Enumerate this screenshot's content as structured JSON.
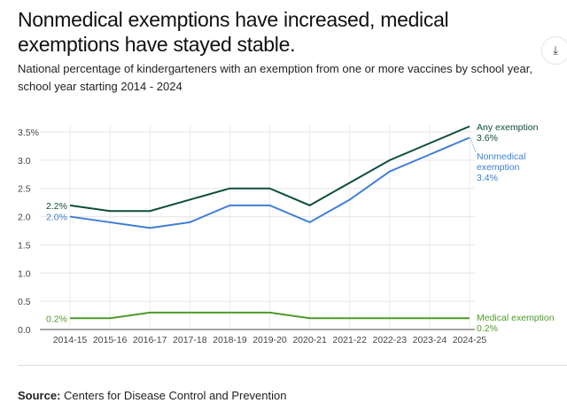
{
  "header": {
    "title": "Nonmedical exemptions have increased, medical exemptions have stayed stable.",
    "subtitle": "National percentage of kindergarteners with an exemption from one or more vaccines by school year, school year starting 2014 - 2024",
    "download_icon": "download-icon"
  },
  "footer": {
    "source_label": "Source:",
    "source_text": " Centers for Disease Control and Prevention"
  },
  "chart_data": {
    "type": "line",
    "x": [
      "2014-15",
      "2015-16",
      "2016-17",
      "2017-18",
      "2018-19",
      "2019-20",
      "2020-21",
      "2021-22",
      "2022-23",
      "2023-24",
      "2024-25"
    ],
    "yticks": [
      "0.0",
      "0.5",
      "1.0",
      "1.5",
      "2.0",
      "2.5",
      "3.0",
      "3.5%"
    ],
    "ylim": [
      0,
      3.5
    ],
    "grid": true,
    "series": [
      {
        "name": "Any exemption",
        "color": "#0d4d3a",
        "values": [
          2.2,
          2.1,
          2.1,
          2.3,
          2.5,
          2.5,
          2.2,
          2.6,
          3.0,
          3.3,
          3.6
        ],
        "start_label": "2.2%",
        "end_label": [
          "Any exemption",
          "3.6%"
        ]
      },
      {
        "name": "Nonmedical exemption",
        "color": "#3d7fd4",
        "values": [
          2.0,
          1.9,
          1.8,
          1.9,
          2.2,
          2.2,
          1.9,
          2.3,
          2.8,
          3.1,
          3.4
        ],
        "start_label": "2.0%",
        "end_label": [
          "Nonmedical",
          "exemption",
          "3.4%"
        ]
      },
      {
        "name": "Medical exemption",
        "color": "#4e9a2a",
        "values": [
          0.2,
          0.2,
          0.3,
          0.3,
          0.3,
          0.3,
          0.2,
          0.2,
          0.2,
          0.2,
          0.2
        ],
        "start_label": "0.2%",
        "end_label": [
          "Medical exemption",
          "0.2%"
        ]
      }
    ]
  }
}
